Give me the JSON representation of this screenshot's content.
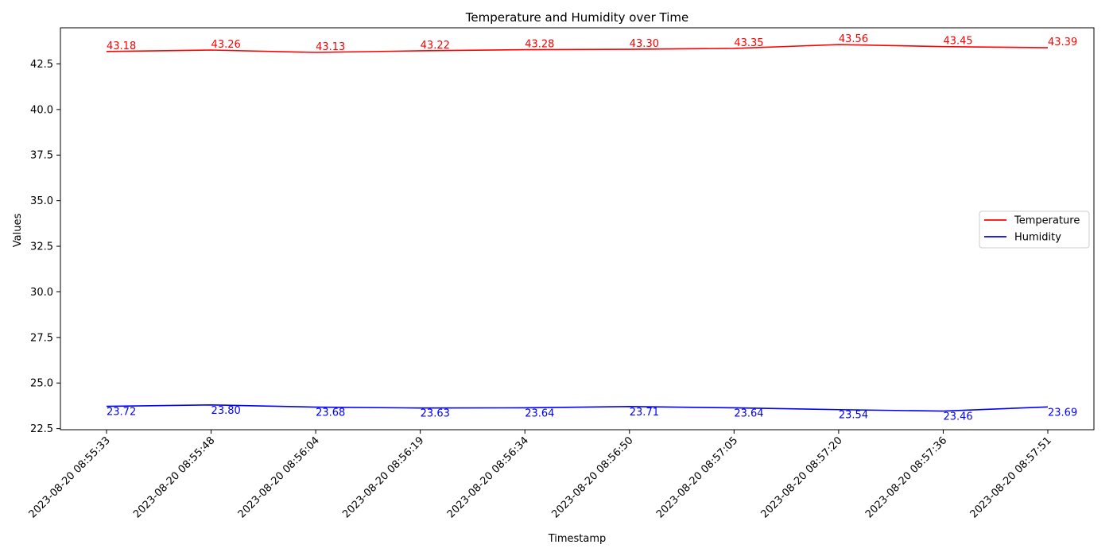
{
  "chart_data": {
    "type": "line",
    "title": "Temperature and Humidity over Time",
    "xlabel": "Timestamp",
    "ylabel": "Values",
    "x": [
      "2023-08-20 08:55:33",
      "2023-08-20 08:55:48",
      "2023-08-20 08:56:04",
      "2023-08-20 08:56:19",
      "2023-08-20 08:56:34",
      "2023-08-20 08:56:50",
      "2023-08-20 08:57:05",
      "2023-08-20 08:57:20",
      "2023-08-20 08:57:36",
      "2023-08-20 08:57:51"
    ],
    "yticks": [
      "22.5",
      "25.0",
      "27.5",
      "30.0",
      "32.5",
      "35.0",
      "37.5",
      "40.0",
      "42.5"
    ],
    "ylim": [
      22.44,
      44.48
    ],
    "grid": false,
    "legend_position": "center-right",
    "series": [
      {
        "name": "Temperature",
        "color": "#ff0000",
        "values": [
          43.18,
          43.26,
          43.13,
          43.22,
          43.28,
          43.3,
          43.35,
          43.56,
          43.45,
          43.39
        ],
        "data_labels": [
          "43.18",
          "43.26",
          "43.13",
          "43.22",
          "43.28",
          "43.30",
          "43.35",
          "43.56",
          "43.45",
          "43.39"
        ]
      },
      {
        "name": "Humidity",
        "color": "#0000ff",
        "values": [
          23.72,
          23.8,
          23.68,
          23.63,
          23.64,
          23.71,
          23.64,
          23.54,
          23.46,
          23.69
        ],
        "data_labels": [
          "23.72",
          "23.80",
          "23.68",
          "23.63",
          "23.64",
          "23.71",
          "23.64",
          "23.54",
          "23.46",
          "23.69"
        ]
      }
    ]
  }
}
